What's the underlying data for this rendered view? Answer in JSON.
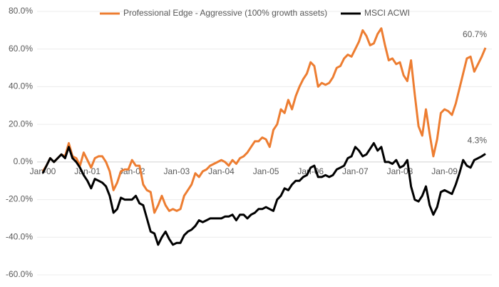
{
  "chart_data": {
    "type": "line",
    "categories": [
      "Jan-00",
      null,
      null,
      null,
      null,
      null,
      null,
      null,
      null,
      null,
      null,
      null,
      "Jan-01",
      null,
      null,
      null,
      null,
      null,
      null,
      null,
      null,
      null,
      null,
      null,
      "Jan-02",
      null,
      null,
      null,
      null,
      null,
      null,
      null,
      null,
      null,
      null,
      null,
      "Jan-03",
      null,
      null,
      null,
      null,
      null,
      null,
      null,
      null,
      null,
      null,
      null,
      "Jan-04",
      null,
      null,
      null,
      null,
      null,
      null,
      null,
      null,
      null,
      null,
      null,
      "Jan-05",
      null,
      null,
      null,
      null,
      null,
      null,
      null,
      null,
      null,
      null,
      null,
      "Jan-06",
      null,
      null,
      null,
      null,
      null,
      null,
      null,
      null,
      null,
      null,
      null,
      "Jan-07",
      null,
      null,
      null,
      null,
      null,
      null,
      null,
      null,
      null,
      null,
      null,
      "Jan-08",
      null,
      null,
      null,
      null,
      null,
      null,
      null,
      null,
      null,
      null,
      null,
      "Jan-09",
      null,
      null,
      null,
      null,
      null,
      null,
      null,
      null,
      null,
      null,
      null
    ],
    "series": [
      {
        "name": "Professional Edge - Aggressive (100% growth assets)",
        "color": "#ed7d31",
        "values": [
          -5,
          -2,
          2,
          0,
          2,
          4,
          3,
          10,
          3,
          2,
          -2,
          5,
          1,
          -3,
          2,
          3,
          3,
          0,
          -5,
          -15,
          -11,
          -5,
          -4,
          -4,
          1,
          -2,
          -2,
          -12,
          -15,
          -16,
          -27,
          -23,
          -18,
          -23,
          -26,
          -25,
          -26,
          -25,
          -18,
          -15,
          -12,
          -6,
          -8,
          -5,
          -4,
          -2,
          -1,
          0,
          1,
          0,
          -2,
          1,
          -1,
          2,
          3,
          5,
          8,
          11,
          11,
          13,
          12,
          8,
          17,
          20,
          28,
          26,
          33,
          28,
          35,
          40,
          44,
          47,
          53,
          51,
          40,
          42,
          41,
          42,
          45,
          50,
          51,
          55,
          57,
          56,
          60,
          64,
          70,
          67,
          62,
          63,
          68,
          71,
          62,
          54,
          55,
          52,
          53,
          46,
          43,
          54,
          36,
          19,
          14,
          28,
          15,
          3,
          12,
          26,
          28,
          27,
          25,
          31,
          39,
          47,
          55,
          56,
          48,
          52,
          56,
          60.7
        ]
      },
      {
        "name": "MSCI ACWI",
        "color": "#000000",
        "values": [
          -6,
          -2,
          2,
          0,
          2,
          4,
          2,
          8,
          2,
          0,
          -3,
          -7,
          -10,
          -14,
          -9,
          -10,
          -11,
          -13,
          -18,
          -27,
          -25,
          -19,
          -20,
          -20,
          -20,
          -18,
          -22,
          -23,
          -30,
          -37,
          -38,
          -44,
          -40,
          -37,
          -41,
          -44,
          -43,
          -43,
          -39,
          -37,
          -36,
          -34,
          -31,
          -32,
          -31,
          -30,
          -30,
          -30,
          -30,
          -29,
          -29,
          -28,
          -31,
          -28,
          -28,
          -30,
          -28,
          -27,
          -25,
          -25,
          -24,
          -25,
          -26,
          -20,
          -18,
          -14,
          -15,
          -12,
          -10,
          -10,
          -8,
          -7,
          -3,
          -2,
          -8,
          -8,
          -7,
          -8,
          -7,
          -4,
          -3,
          -2,
          2,
          3,
          8,
          6,
          3,
          4,
          7,
          10,
          6,
          8,
          0,
          0,
          -1,
          1,
          -3,
          -2,
          1,
          -13,
          -20,
          -21,
          -18,
          -13,
          -23,
          -28,
          -24,
          -16,
          -15,
          -16,
          -17,
          -12,
          -6,
          1,
          -2,
          -3,
          1,
          2,
          3,
          4.3
        ]
      }
    ],
    "annotations": [
      {
        "text": "60.7%",
        "value": 60.7,
        "series": 0
      },
      {
        "text": "4.3%",
        "value": 4.3,
        "series": 1
      }
    ],
    "ylim": [
      -60,
      80
    ],
    "yticks": [
      {
        "value": -60,
        "label": "-60.0%"
      },
      {
        "value": -40,
        "label": "-40.0%"
      },
      {
        "value": -20,
        "label": "-20.0%"
      },
      {
        "value": 0,
        "label": "0.0%"
      },
      {
        "value": 20,
        "label": "20.0%"
      },
      {
        "value": 40,
        "label": "40.0%"
      },
      {
        "value": 60,
        "label": "60.0%"
      },
      {
        "value": 80,
        "label": "80.0%"
      }
    ],
    "grid": true,
    "legend": "top"
  }
}
